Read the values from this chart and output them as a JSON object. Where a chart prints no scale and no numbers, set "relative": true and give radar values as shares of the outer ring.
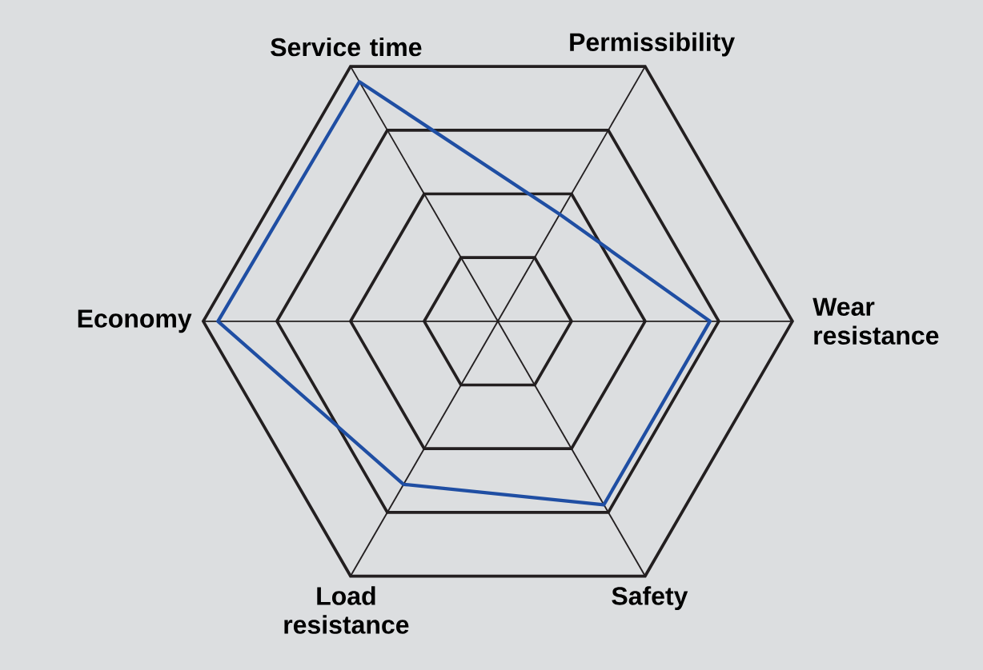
{
  "chart_data": {
    "type": "radar",
    "relative": true,
    "grid": true,
    "marker": "none",
    "categories": [
      "Permissibility",
      "Wear resistance",
      "Safety",
      "Load resistance",
      "Economy",
      "Service time"
    ],
    "series": [
      {
        "color": "#1f4ea3",
        "values": [
          0.42,
          0.72,
          0.72,
          0.64,
          0.95,
          0.94
        ]
      }
    ]
  }
}
